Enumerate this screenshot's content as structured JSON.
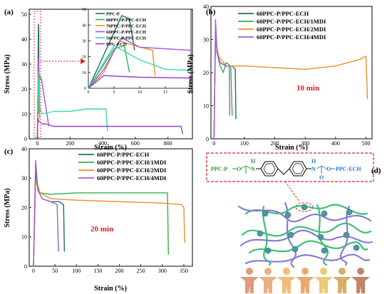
{
  "colors": {
    "ppcp": "#1f6f6a",
    "ecr80": "#33b24a",
    "ecr70": "#e8912b",
    "ecr60": "#a055d6",
    "ecr50": "#3ad8b0",
    "ppcech": "#8e3fd1",
    "mdi_teal": "#1f6f6a",
    "mdi_green": "#2db34a",
    "mdi_orange": "#e8912b",
    "mdi_purple": "#a25bd6",
    "annot_red": "#e0202a",
    "text_red": "#e01b1b",
    "chain_green": "#2a9a3a",
    "chain_blue": "#2a7bc8",
    "net_green": "#3cc070",
    "net_purple": "#8a7ad8",
    "node_teal": "#4a9aa0"
  },
  "chart_data": [
    {
      "panel_label": "(a)",
      "type": "line",
      "xlabel": "Strain (%)",
      "ylabel": "Stress (MPa)",
      "xlim": [
        -50,
        950
      ],
      "ylim": [
        0,
        52
      ],
      "xticks": [
        0,
        200,
        400,
        600,
        800
      ],
      "yticks": [
        0,
        10,
        20,
        30,
        40,
        50
      ],
      "series": [
        {
          "name": "PPC-P",
          "color_key": "ppcp",
          "x": [
            0,
            2,
            6.5,
            8,
            9
          ],
          "y": [
            0,
            14,
            46,
            44,
            24
          ]
        },
        {
          "name": "80PPC-P/PPC-ECH",
          "color_key": "ecr80",
          "x": [
            0,
            2,
            5,
            7,
            8
          ],
          "y": [
            0,
            10,
            25,
            27,
            10
          ]
        },
        {
          "name": "70PPC-P/PPC-ECH",
          "color_key": "ecr70",
          "x": [
            0,
            3,
            6,
            9,
            12.5,
            13
          ],
          "y": [
            0,
            10,
            30,
            27,
            24,
            8
          ]
        },
        {
          "name": "60PPC-P/PPC-ECH",
          "color_key": "ecr60",
          "x": [
            0,
            3,
            6.5,
            10,
            20,
            25,
            70
          ],
          "y": [
            0,
            12,
            32,
            26,
            24,
            24,
            5
          ]
        },
        {
          "name": "50PPC-P/PPC-ECH",
          "color_key": "ecr50",
          "x": [
            0,
            5,
            10,
            15,
            30,
            100,
            200,
            300,
            420,
            430
          ],
          "y": [
            0,
            27,
            18,
            12,
            10,
            11,
            11,
            12,
            12,
            3
          ]
        },
        {
          "name": "PPC-ECH",
          "color_key": "ppcech",
          "x": [
            0,
            3,
            10,
            30,
            50,
            100,
            400,
            700,
            880,
            890
          ],
          "y": [
            0,
            8,
            7,
            6,
            6,
            5,
            5,
            5,
            5,
            2
          ]
        }
      ],
      "inset": {
        "xlim": [
          0,
          20
        ],
        "ylim": [
          0,
          50
        ],
        "xticks": [
          0,
          5,
          10,
          15,
          20
        ],
        "yticks": [
          0,
          10,
          20,
          30,
          40,
          50
        ]
      }
    },
    {
      "panel_label": "(b)",
      "type": "line",
      "xlabel": "Strain (%)",
      "ylabel": "Stress (MPa)",
      "annotation": "10 min",
      "xlim": [
        -10,
        520
      ],
      "ylim": [
        0,
        40
      ],
      "xticks": [
        0,
        100,
        200,
        300,
        400,
        500
      ],
      "yticks": [
        0,
        10,
        20,
        30,
        40
      ],
      "series": [
        {
          "name": "60PPC-P/PPC-ECH",
          "color_key": "mdi_teal",
          "x": [
            0,
            5,
            10,
            20,
            40,
            60,
            70,
            72
          ],
          "y": [
            0,
            33,
            26,
            23,
            22,
            22,
            21,
            6
          ]
        },
        {
          "name": "60PPC-P/PPC-ECH/1MDI",
          "color_key": "mdi_green",
          "x": [
            0,
            5,
            10,
            20,
            30,
            40,
            55,
            60
          ],
          "y": [
            0,
            34,
            26,
            22,
            20,
            23,
            22,
            7
          ]
        },
        {
          "name": "60PPC-P/PPC-ECH/2MDI",
          "color_key": "mdi_orange",
          "x": [
            0,
            5,
            15,
            40,
            100,
            200,
            300,
            400,
            480,
            500,
            505
          ],
          "y": [
            0,
            30,
            25,
            22,
            22,
            21.5,
            21,
            22,
            24,
            25,
            12
          ]
        },
        {
          "name": "60PPC-P/PPC-ECH/4MDI",
          "color_key": "mdi_purple",
          "x": [
            0,
            5,
            10,
            20,
            40,
            50,
            52
          ],
          "y": [
            0,
            36,
            26,
            23,
            22,
            22,
            7
          ]
        }
      ]
    },
    {
      "panel_label": "(c)",
      "type": "line",
      "xlabel": "Strain (%)",
      "ylabel": "Stress (MPa)",
      "annotation": "20 min",
      "xlim": [
        -10,
        370
      ],
      "ylim": [
        0,
        40
      ],
      "xticks": [
        0,
        50,
        100,
        150,
        200,
        250,
        300,
        350
      ],
      "yticks": [
        0,
        10,
        20,
        30,
        40
      ],
      "series": [
        {
          "name": "60PPC-P/PPC-ECH",
          "color_key": "mdi_teal",
          "x": [
            0,
            5,
            10,
            20,
            40,
            60,
            70,
            72
          ],
          "y": [
            0,
            33,
            26,
            23,
            22,
            22,
            21,
            5
          ]
        },
        {
          "name": "60PPC-P/PPC-ECH/1MDI",
          "color_key": "mdi_green",
          "x": [
            0,
            5,
            15,
            40,
            100,
            200,
            300,
            312,
            314
          ],
          "y": [
            0,
            30,
            25,
            24.5,
            25,
            25,
            25,
            25,
            4
          ]
        },
        {
          "name": "60PPC-P/PPC-ECH/2MDI",
          "color_key": "mdi_orange",
          "x": [
            0,
            5,
            15,
            40,
            100,
            200,
            300,
            345,
            350,
            352
          ],
          "y": [
            0,
            29,
            25,
            23,
            22.5,
            22,
            21.5,
            21,
            20,
            8
          ]
        },
        {
          "name": "60PPC-P/PPC-ECH/4MDI",
          "color_key": "mdi_purple",
          "x": [
            0,
            5,
            10,
            20,
            40,
            55,
            58
          ],
          "y": [
            0,
            36,
            26,
            23,
            22,
            21,
            5
          ]
        }
      ]
    }
  ],
  "panel_d": {
    "label": "(d)",
    "chain": {
      "left": "PPC-P",
      "o1": "O",
      "nh": "H",
      "n": "N",
      "o2": "O",
      "o3": "O",
      "right": "PPC-ECH"
    }
  }
}
